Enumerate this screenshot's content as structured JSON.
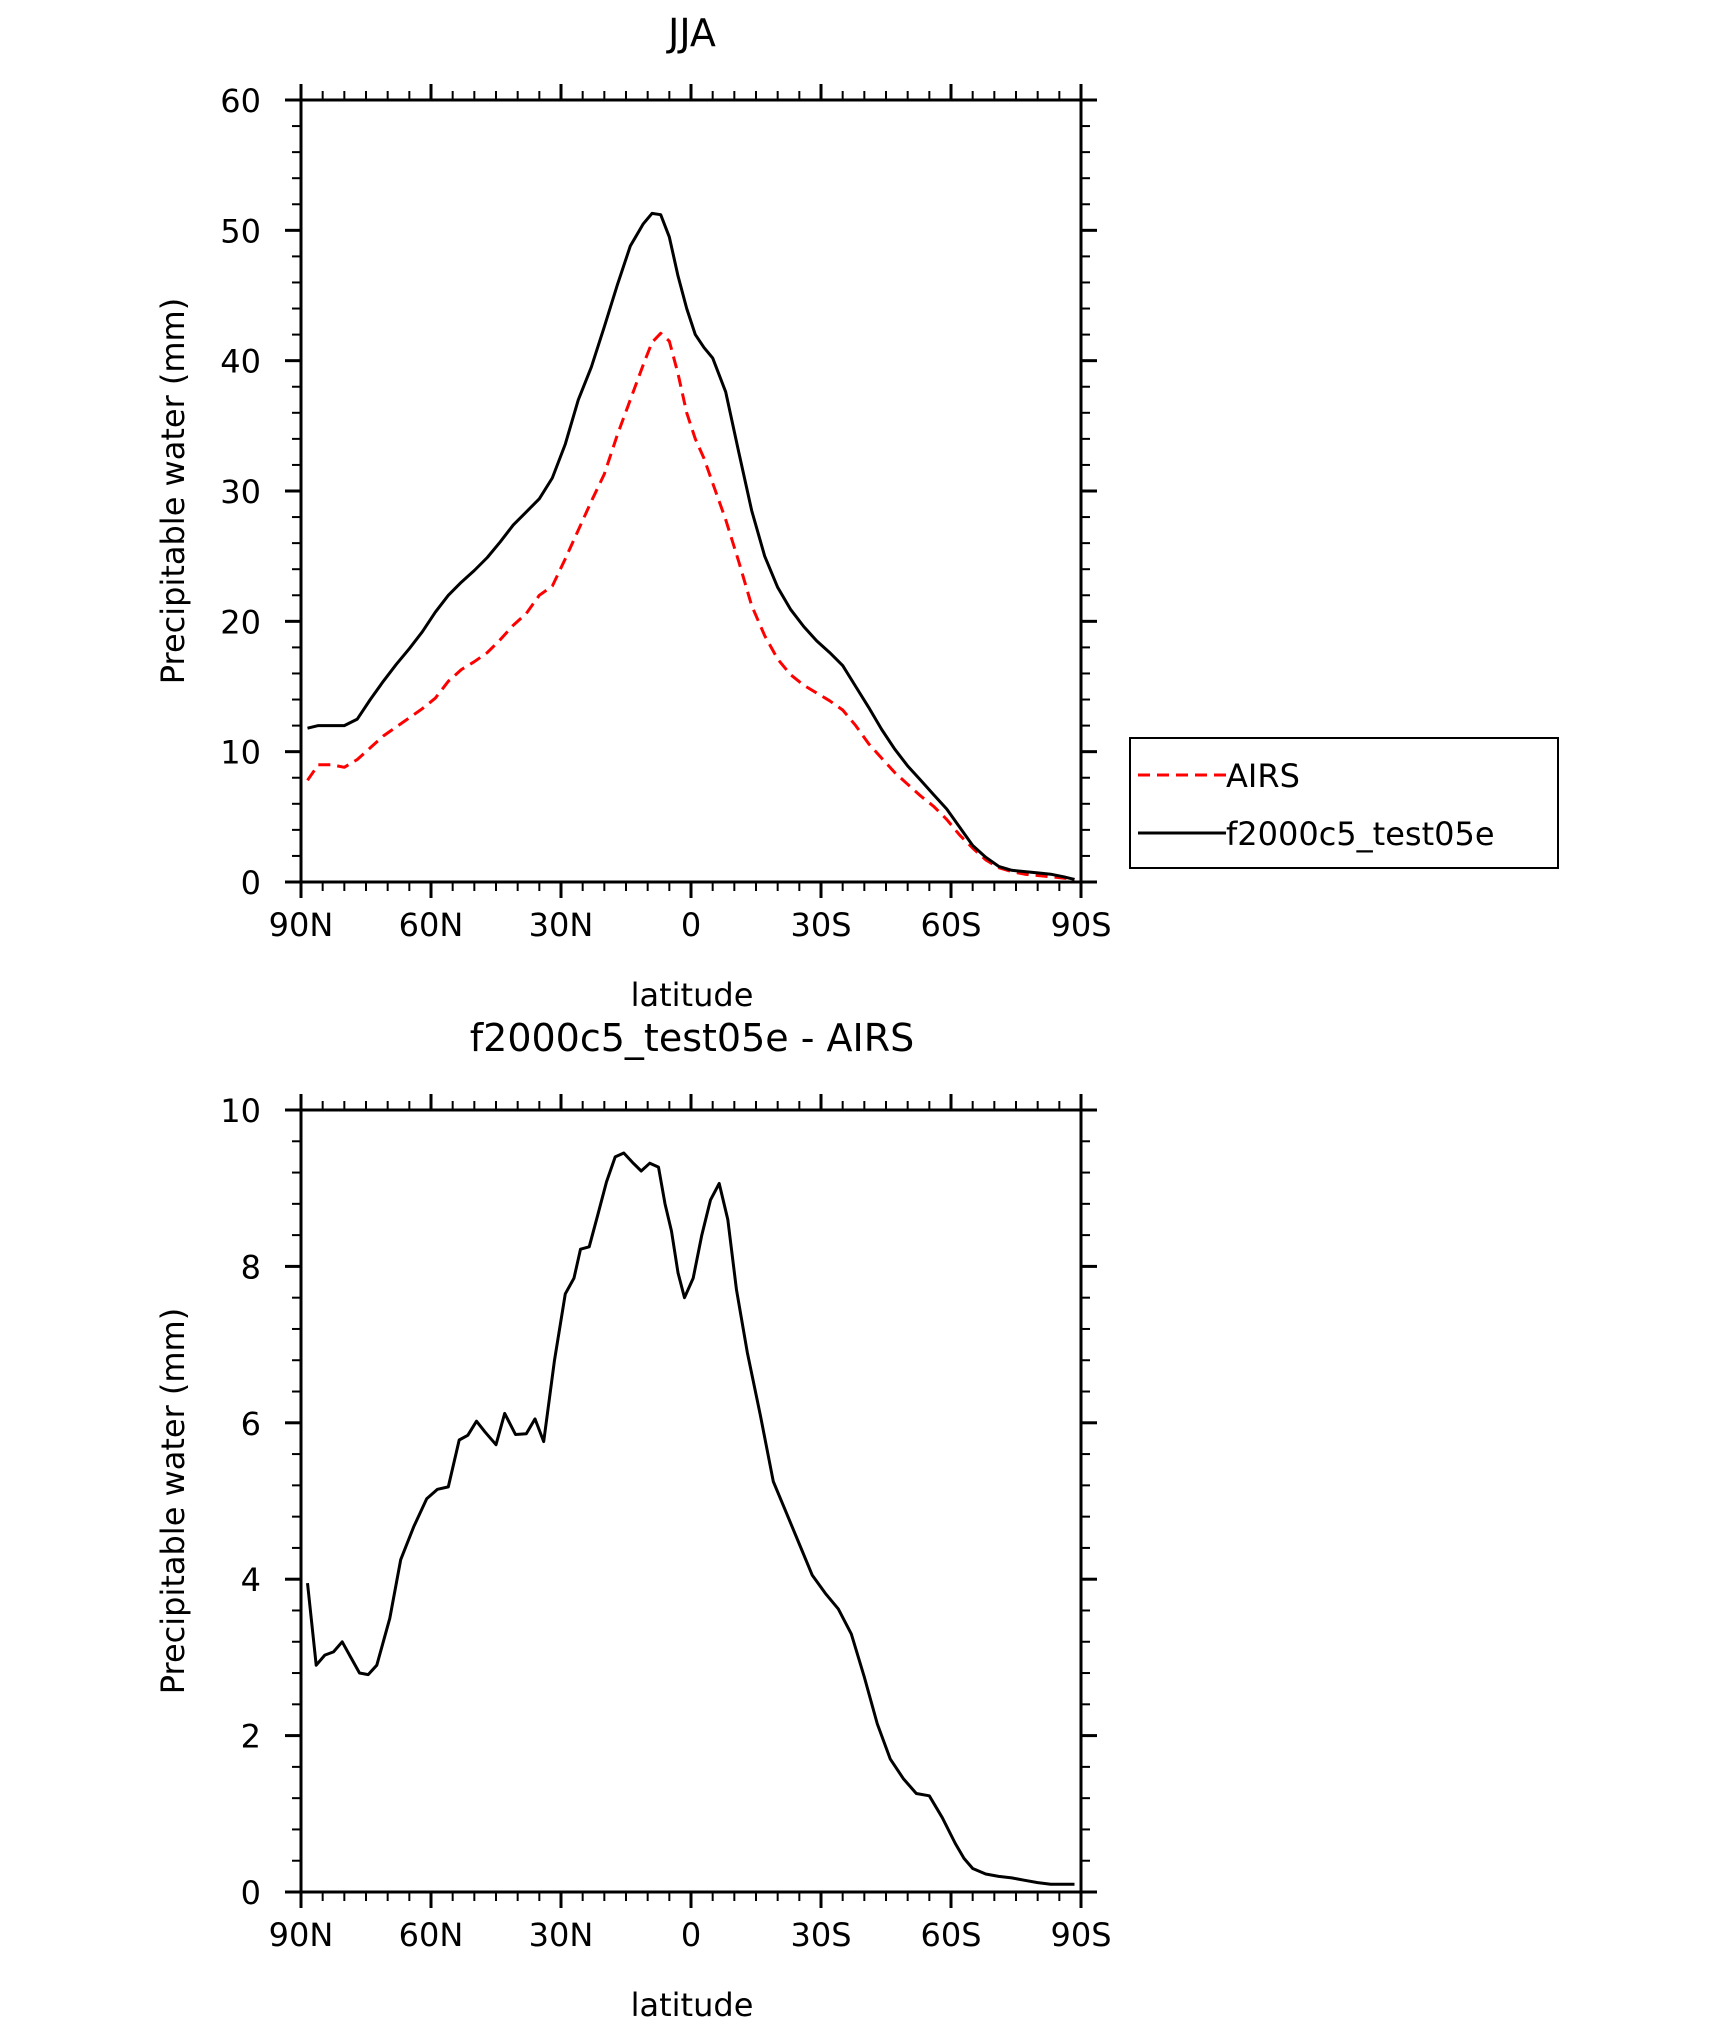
{
  "legend": {
    "entries": [
      {
        "label": "AIRS",
        "color": "#ff0000",
        "dash": true
      },
      {
        "label": "f2000c5_test05e",
        "color": "#000000",
        "dash": false
      }
    ]
  },
  "chart_data": [
    {
      "type": "line",
      "title": "JJA",
      "xlabel": "latitude",
      "ylabel": "Precipitable water (mm)",
      "xlim": [
        90,
        -90
      ],
      "ylim": [
        0,
        60
      ],
      "xticks": [
        90,
        60,
        30,
        0,
        -30,
        -60,
        -90
      ],
      "xtick_labels": [
        "90N",
        "60N",
        "30N",
        "0",
        "30S",
        "60S",
        "90S"
      ],
      "yticks": [
        0,
        10,
        20,
        30,
        40,
        50,
        60
      ],
      "ytick_labels": [
        "0",
        "10",
        "20",
        "30",
        "40",
        "50",
        "60"
      ],
      "legend_position": "right",
      "series": [
        {
          "name": "AIRS",
          "color": "#ff0000",
          "dash": true,
          "x": [
            88.5,
            86,
            83,
            80,
            77,
            74,
            71,
            68,
            65,
            62,
            59,
            56,
            53,
            50,
            47,
            44,
            41,
            38,
            35,
            32,
            29,
            26,
            23,
            20,
            17,
            14,
            11,
            9,
            7,
            5,
            3,
            1,
            -1,
            -3,
            -5,
            -8,
            -11,
            -14,
            -17,
            -20,
            -23,
            -26,
            -29,
            -32,
            -35,
            -38,
            -41,
            -44,
            -47,
            -50,
            -53,
            -56,
            -59,
            -62,
            -65,
            -68,
            -71,
            -74,
            -77,
            -80,
            -83,
            -86,
            -88.5
          ],
          "values": [
            7.8,
            9.0,
            9.0,
            8.8,
            9.4,
            10.3,
            11.2,
            11.9,
            12.6,
            13.3,
            14.1,
            15.4,
            16.3,
            16.9,
            17.6,
            18.6,
            19.7,
            20.6,
            22.0,
            22.7,
            24.8,
            27.0,
            29.2,
            31.3,
            34.3,
            37.0,
            39.7,
            41.4,
            42.1,
            41.5,
            39.0,
            36.0,
            34.0,
            32.5,
            30.6,
            27.8,
            24.6,
            21.2,
            18.9,
            17.1,
            15.9,
            15.1,
            14.5,
            13.9,
            13.2,
            12.0,
            10.6,
            9.5,
            8.4,
            7.5,
            6.6,
            5.8,
            4.8,
            3.6,
            2.6,
            1.7,
            1.1,
            0.8,
            0.6,
            0.5,
            0.4,
            0.3,
            0.2
          ]
        },
        {
          "name": "f2000c5_test05e",
          "color": "#000000",
          "dash": false,
          "x": [
            88.5,
            86,
            83,
            80,
            77,
            74,
            71,
            68,
            65,
            62,
            59,
            56,
            53,
            50,
            47,
            44,
            41,
            38,
            35,
            32,
            29,
            26,
            23,
            20,
            17,
            14,
            11,
            9,
            7,
            5,
            3,
            1,
            -1,
            -3,
            -5,
            -8,
            -11,
            -14,
            -17,
            -20,
            -23,
            -26,
            -29,
            -32,
            -35,
            -38,
            -41,
            -44,
            -47,
            -50,
            -53,
            -56,
            -59,
            -62,
            -65,
            -68,
            -71,
            -74,
            -77,
            -80,
            -83,
            -86,
            -88.5
          ],
          "values": [
            11.8,
            12.0,
            12.0,
            12.0,
            12.5,
            14.0,
            15.4,
            16.7,
            17.9,
            19.2,
            20.7,
            22.0,
            23.0,
            23.9,
            24.9,
            26.1,
            27.4,
            28.4,
            29.4,
            31.0,
            33.6,
            37.0,
            39.5,
            42.6,
            45.8,
            48.8,
            50.5,
            51.3,
            51.2,
            49.5,
            46.5,
            44.0,
            42.0,
            41.0,
            40.2,
            37.6,
            33.0,
            28.5,
            25.0,
            22.6,
            20.9,
            19.6,
            18.5,
            17.6,
            16.6,
            15.0,
            13.4,
            11.7,
            10.2,
            8.9,
            7.8,
            6.7,
            5.6,
            4.2,
            2.8,
            1.9,
            1.2,
            0.9,
            0.8,
            0.7,
            0.6,
            0.4,
            0.2
          ]
        }
      ]
    },
    {
      "type": "line",
      "title": "f2000c5_test05e - AIRS",
      "xlabel": "latitude",
      "ylabel": "Precipitable water (mm)",
      "xlim": [
        90,
        -90
      ],
      "ylim": [
        0,
        10
      ],
      "xticks": [
        90,
        60,
        30,
        0,
        -30,
        -60,
        -90
      ],
      "xtick_labels": [
        "90N",
        "60N",
        "30N",
        "0",
        "30S",
        "60S",
        "90S"
      ],
      "yticks": [
        0,
        2,
        4,
        6,
        8,
        10
      ],
      "ytick_labels": [
        "0",
        "2",
        "4",
        "6",
        "8",
        "10"
      ],
      "series": [
        {
          "name": "f2000c5_test05e - AIRS",
          "color": "#000000",
          "dash": false,
          "x": [
            88.5,
            86.5,
            84.5,
            82.5,
            80.5,
            78.5,
            76.5,
            74.5,
            72.5,
            69.5,
            67,
            64,
            61,
            58.5,
            56,
            53.5,
            51.5,
            49.5,
            47.5,
            45,
            43,
            40.5,
            38,
            36,
            34,
            31.5,
            29,
            27,
            25.5,
            23.5,
            21.5,
            19.5,
            17.5,
            15.5,
            13.5,
            11.5,
            9.5,
            7.5,
            6,
            4.5,
            3,
            1.5,
            -0.5,
            -2.5,
            -4.5,
            -6.5,
            -8.5,
            -10.5,
            -13,
            -16,
            -19,
            -22,
            -25,
            -28,
            -31,
            -34,
            -37,
            -40,
            -43,
            -46,
            -49,
            -52,
            -55,
            -58,
            -61,
            -63,
            -65,
            -68,
            -71,
            -74,
            -77,
            -80,
            -83,
            -86,
            -88.5
          ],
          "values": [
            3.95,
            2.9,
            3.03,
            3.07,
            3.2,
            3.0,
            2.8,
            2.78,
            2.9,
            3.5,
            4.25,
            4.67,
            5.03,
            5.15,
            5.18,
            5.78,
            5.84,
            6.02,
            5.88,
            5.72,
            6.12,
            5.85,
            5.86,
            6.05,
            5.76,
            6.8,
            7.65,
            7.85,
            8.22,
            8.25,
            8.66,
            9.08,
            9.4,
            9.45,
            9.33,
            9.22,
            9.32,
            9.27,
            8.8,
            8.45,
            7.92,
            7.6,
            7.85,
            8.4,
            8.85,
            9.06,
            8.6,
            7.7,
            6.9,
            6.1,
            5.25,
            4.85,
            4.45,
            4.05,
            3.82,
            3.62,
            3.3,
            2.75,
            2.15,
            1.7,
            1.45,
            1.26,
            1.23,
            0.95,
            0.62,
            0.43,
            0.3,
            0.23,
            0.2,
            0.18,
            0.15,
            0.12,
            0.1,
            0.1,
            0.1
          ]
        }
      ]
    }
  ]
}
